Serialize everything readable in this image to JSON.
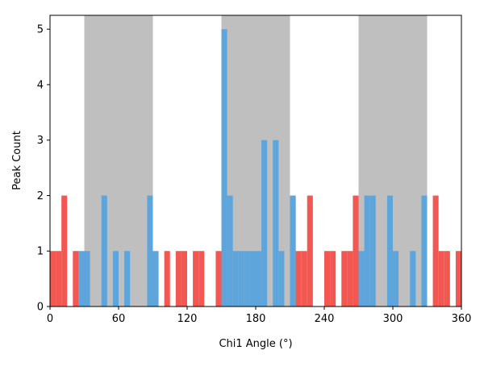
{
  "chart_data": {
    "type": "bar",
    "xlabel": "Chi1 Angle (°)",
    "ylabel": "Peak Count",
    "xlim": [
      0,
      360
    ],
    "ylim": [
      0,
      5.25
    ],
    "xticks": [
      0,
      60,
      120,
      180,
      240,
      300,
      360
    ],
    "yticks": [
      0,
      1,
      2,
      3,
      4,
      5
    ],
    "grid": false,
    "bin_width": 5,
    "shaded_regions": {
      "color": "#bfbfbf",
      "ranges": [
        [
          30,
          90
        ],
        [
          150,
          210
        ],
        [
          270,
          330
        ]
      ]
    },
    "series": [
      {
        "color": "#f25752",
        "bins": [
          {
            "x": 0,
            "value": 1
          },
          {
            "x": 5,
            "value": 1
          },
          {
            "x": 10,
            "value": 2
          },
          {
            "x": 15,
            "value": 0
          },
          {
            "x": 20,
            "value": 1
          },
          {
            "x": 25,
            "value": 0
          },
          {
            "x": 90,
            "value": 0
          },
          {
            "x": 95,
            "value": 0
          },
          {
            "x": 100,
            "value": 1
          },
          {
            "x": 105,
            "value": 0
          },
          {
            "x": 110,
            "value": 1
          },
          {
            "x": 115,
            "value": 1
          },
          {
            "x": 120,
            "value": 0
          },
          {
            "x": 125,
            "value": 1
          },
          {
            "x": 130,
            "value": 1
          },
          {
            "x": 135,
            "value": 0
          },
          {
            "x": 140,
            "value": 0
          },
          {
            "x": 145,
            "value": 1
          },
          {
            "x": 210,
            "value": 2
          },
          {
            "x": 215,
            "value": 1
          },
          {
            "x": 220,
            "value": 1
          },
          {
            "x": 225,
            "value": 2
          },
          {
            "x": 230,
            "value": 0
          },
          {
            "x": 235,
            "value": 0
          },
          {
            "x": 240,
            "value": 1
          },
          {
            "x": 245,
            "value": 1
          },
          {
            "x": 250,
            "value": 0
          },
          {
            "x": 255,
            "value": 1
          },
          {
            "x": 260,
            "value": 1
          },
          {
            "x": 265,
            "value": 2
          },
          {
            "x": 330,
            "value": 0
          },
          {
            "x": 335,
            "value": 2
          },
          {
            "x": 340,
            "value": 1
          },
          {
            "x": 345,
            "value": 1
          },
          {
            "x": 350,
            "value": 0
          },
          {
            "x": 355,
            "value": 1
          }
        ]
      },
      {
        "color": "#5da5da",
        "bins": [
          {
            "x": 25,
            "value": 1
          },
          {
            "x": 30,
            "value": 1
          },
          {
            "x": 35,
            "value": 0
          },
          {
            "x": 40,
            "value": 0
          },
          {
            "x": 45,
            "value": 2
          },
          {
            "x": 50,
            "value": 0
          },
          {
            "x": 55,
            "value": 1
          },
          {
            "x": 60,
            "value": 0
          },
          {
            "x": 65,
            "value": 1
          },
          {
            "x": 70,
            "value": 0
          },
          {
            "x": 75,
            "value": 0
          },
          {
            "x": 80,
            "value": 0
          },
          {
            "x": 85,
            "value": 2
          },
          {
            "x": 90,
            "value": 1
          },
          {
            "x": 150,
            "value": 5
          },
          {
            "x": 155,
            "value": 2
          },
          {
            "x": 160,
            "value": 1
          },
          {
            "x": 165,
            "value": 1
          },
          {
            "x": 170,
            "value": 1
          },
          {
            "x": 175,
            "value": 1
          },
          {
            "x": 180,
            "value": 1
          },
          {
            "x": 185,
            "value": 3
          },
          {
            "x": 190,
            "value": 0
          },
          {
            "x": 195,
            "value": 3
          },
          {
            "x": 200,
            "value": 1
          },
          {
            "x": 205,
            "value": 0
          },
          {
            "x": 210,
            "value": 2
          },
          {
            "x": 270,
            "value": 1
          },
          {
            "x": 275,
            "value": 2
          },
          {
            "x": 280,
            "value": 2
          },
          {
            "x": 285,
            "value": 0
          },
          {
            "x": 290,
            "value": 0
          },
          {
            "x": 295,
            "value": 2
          },
          {
            "x": 300,
            "value": 1
          },
          {
            "x": 305,
            "value": 0
          },
          {
            "x": 310,
            "value": 0
          },
          {
            "x": 315,
            "value": 1
          },
          {
            "x": 320,
            "value": 0
          },
          {
            "x": 325,
            "value": 2
          }
        ]
      }
    ]
  }
}
